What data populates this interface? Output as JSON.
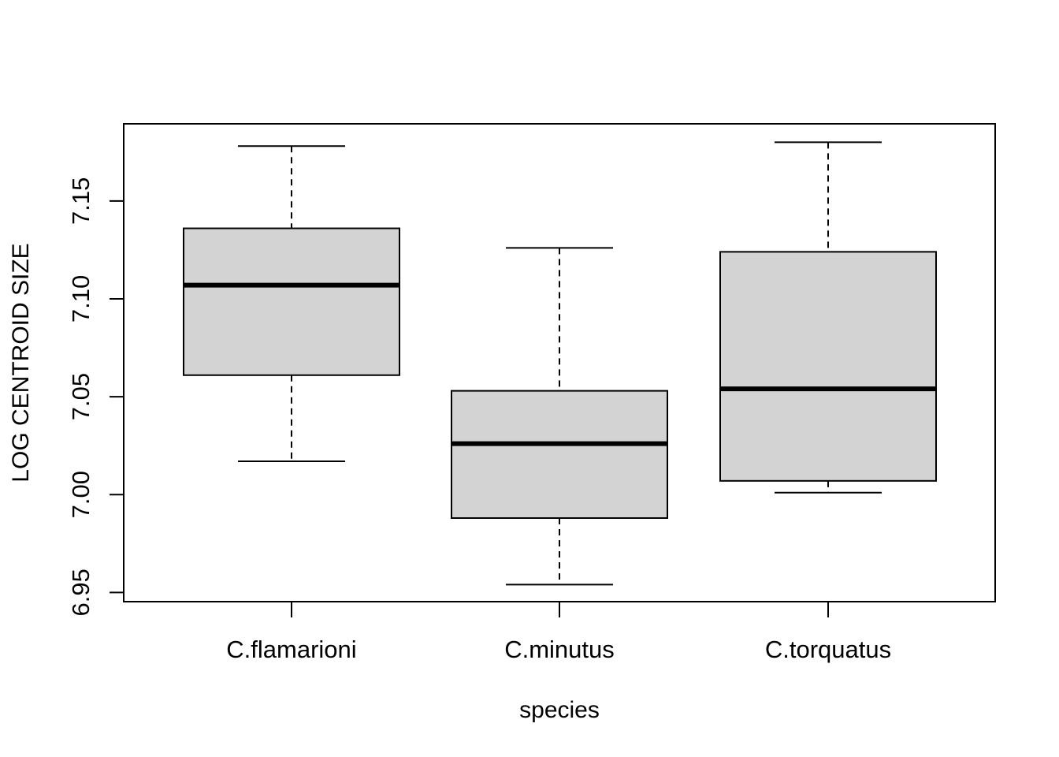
{
  "chart_data": {
    "type": "boxplot",
    "title": "",
    "xlabel": "species",
    "ylabel": "LOG CENTROID SIZE",
    "categories": [
      "C.flamarioni",
      "C.minutus",
      "C.torquatus"
    ],
    "boxes": [
      {
        "name": "C.flamarioni",
        "whisker_low": 7.017,
        "q1": 7.061,
        "median": 7.107,
        "q3": 7.136,
        "whisker_high": 7.178
      },
      {
        "name": "C.minutus",
        "whisker_low": 6.954,
        "q1": 6.988,
        "median": 7.026,
        "q3": 7.053,
        "whisker_high": 7.126
      },
      {
        "name": "C.torquatus",
        "whisker_low": 7.001,
        "q1": 7.007,
        "median": 7.054,
        "q3": 7.124,
        "whisker_high": 7.18
      }
    ],
    "ylim": [
      6.9453,
      7.1894
    ],
    "yticks": [
      6.95,
      7.0,
      7.05,
      7.1,
      7.15
    ],
    "ytick_labels": [
      "6.95",
      "7.00",
      "7.05",
      "7.10",
      "7.15"
    ],
    "box_fill": "#d3d3d3",
    "line_color": "#000000",
    "grid": false,
    "legend": "none"
  }
}
